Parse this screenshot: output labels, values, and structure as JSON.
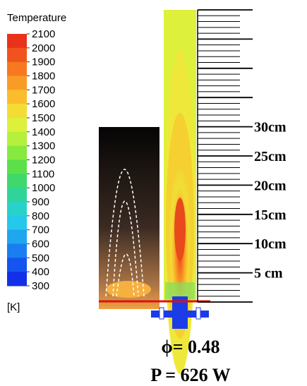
{
  "colorbar": {
    "title": "Temperature",
    "labels": [
      "2100",
      "2000",
      "1900",
      "1800",
      "1700",
      "1600",
      "1500",
      "1400",
      "1300",
      "1200",
      "1100",
      "1000",
      "900",
      "800",
      "700",
      "600",
      "500",
      "400",
      "300"
    ],
    "colors": [
      "#e8321c",
      "#f0531d",
      "#f6781f",
      "#f99c25",
      "#fbbd2c",
      "#f4dc35",
      "#dcf03c",
      "#b4f03c",
      "#86ea3e",
      "#5ce04a",
      "#3fd86a",
      "#2fd49a",
      "#28d2c8",
      "#24c8ea",
      "#1ea6ee",
      "#1a7ef0",
      "#1654f0",
      "#1230e8"
    ],
    "unit": "[K]"
  },
  "ruler": {
    "labels": [
      "30cm",
      "25cm",
      "20cm",
      "15cm",
      "10cm",
      "5 cm"
    ]
  },
  "caption": {
    "equivalence_ratio": "ϕ= 0.48",
    "power": "P = 626 W"
  }
}
